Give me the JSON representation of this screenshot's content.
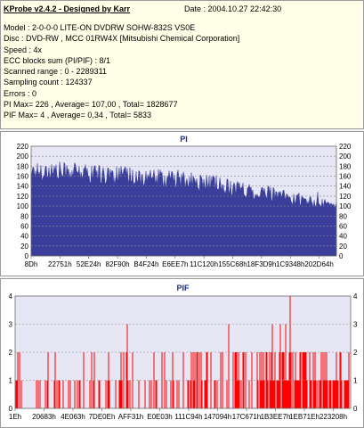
{
  "app": {
    "title": "KProbe v2.4.2 - Designed by Karr",
    "date": "Date : 2004.10.27 22:42:30"
  },
  "info_lines": [
    "Model : 2-0-0-0 LITE-ON DVDRW SOHW-832S  VS0E",
    "Disc : DVD-RW , MCC 01RW4X  [Mitsubishi Chemical Corporation]",
    "Speed : 4x",
    "ECC blocks sum (PI/PIF) : 8/1",
    "Scanned range : 0 - 2289311",
    "Sampling count : 124337",
    "Errors : 0",
    "PI Max= 226 , Average= 107,00 , Total= 1828677",
    "PIF Max= 4 , Average= 0,34 , Total= 5833"
  ],
  "colors": {
    "pi_fill": "#3a3e9a",
    "pif_bars": "#ff0000",
    "plot_bg": "#e6e6f5",
    "title": "#1c2f8c"
  },
  "chart_data": [
    {
      "type": "area",
      "title": "PI",
      "ylim": [
        0,
        220
      ],
      "yticks": [
        "0",
        "20",
        "40",
        "60",
        "80",
        "100",
        "120",
        "140",
        "160",
        "180",
        "200",
        "220"
      ],
      "xticks": [
        "8Dh",
        "22751h",
        "52E24h",
        "82F90h",
        "B4F24h",
        "E6EE7h",
        "11C120h",
        "155C68h",
        "18F3D9h",
        "1C9348h",
        "202D64h"
      ],
      "grid": true,
      "profile": [
        {
          "x": 0.0,
          "lo": 150,
          "hi": 190
        },
        {
          "x": 0.08,
          "lo": 150,
          "hi": 190
        },
        {
          "x": 0.2,
          "lo": 145,
          "hi": 185
        },
        {
          "x": 0.3,
          "lo": 140,
          "hi": 180
        },
        {
          "x": 0.4,
          "lo": 135,
          "hi": 175
        },
        {
          "x": 0.5,
          "lo": 130,
          "hi": 170
        },
        {
          "x": 0.6,
          "lo": 125,
          "hi": 162
        },
        {
          "x": 0.7,
          "lo": 115,
          "hi": 150
        },
        {
          "x": 0.78,
          "lo": 110,
          "hi": 140
        },
        {
          "x": 0.86,
          "lo": 100,
          "hi": 128
        },
        {
          "x": 0.93,
          "lo": 95,
          "hi": 118
        },
        {
          "x": 1.0,
          "lo": 95,
          "hi": 110
        }
      ],
      "spike_max": 226
    },
    {
      "type": "bar",
      "title": "PIF",
      "ylim": [
        0,
        4
      ],
      "yticks": [
        "0",
        "1",
        "2",
        "3",
        "4"
      ],
      "xticks": [
        "1Eh",
        "20683h",
        "4E063h",
        "7DE0Eh",
        "AFF31h",
        "E0E03h",
        "111C94h",
        "147094h",
        "17C671h",
        "1B3EE7h",
        "1EB71Eh",
        "223208h"
      ],
      "grid": true,
      "dense_from": 0.72,
      "max": 4
    }
  ]
}
